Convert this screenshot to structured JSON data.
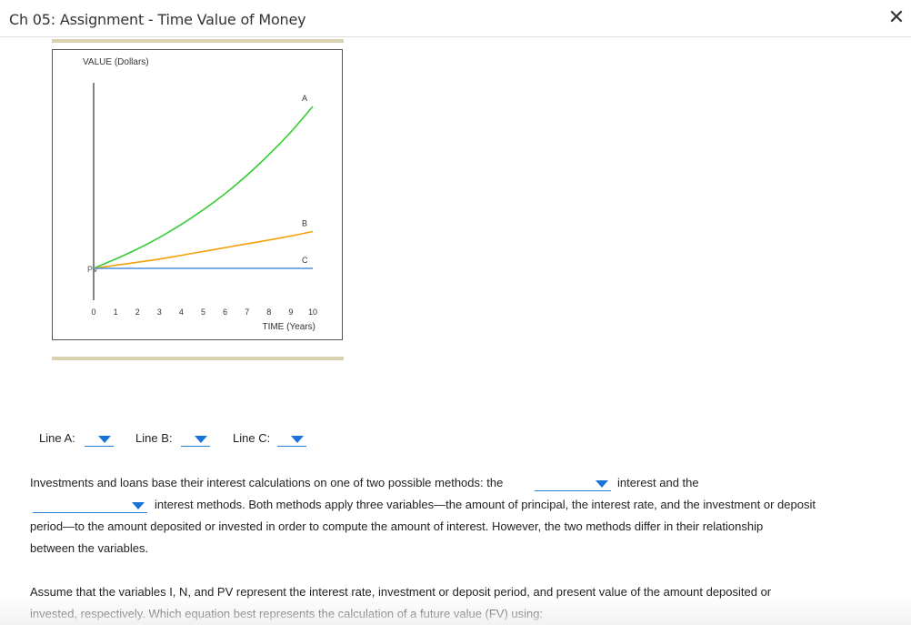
{
  "header": {
    "title": "Ch 05: Assignment - Time Value of Money",
    "close_icon": "close-x-icon"
  },
  "chart_data": {
    "type": "line",
    "ylabel": "VALUE (Dollars)",
    "xlabel": "TIME (Years)",
    "x": [
      0,
      1,
      2,
      3,
      4,
      5,
      6,
      7,
      8,
      9,
      10
    ],
    "tick_labels": [
      "0",
      "1",
      "2",
      "3",
      "4",
      "5",
      "6",
      "7",
      "8",
      "9",
      "10"
    ],
    "pv_label": "PV",
    "series": [
      {
        "name": "A",
        "color": "#33cc33",
        "values": [
          1.0,
          1.12,
          1.25,
          1.4,
          1.57,
          1.76,
          1.97,
          2.21,
          2.48,
          2.77,
          3.11
        ]
      },
      {
        "name": "B",
        "color": "#f5a00a",
        "values": [
          1.0,
          1.04,
          1.08,
          1.12,
          1.17,
          1.22,
          1.27,
          1.32,
          1.37,
          1.42,
          1.48
        ]
      },
      {
        "name": "C",
        "color": "#4a90e2",
        "values": [
          1.0,
          1.0,
          1.0,
          1.0,
          1.0,
          1.0,
          1.0,
          1.0,
          1.0,
          1.0,
          1.0
        ]
      }
    ],
    "ylim": [
      0,
      3.3
    ],
    "grid": false
  },
  "line_selects": {
    "a_label": "Line A:",
    "b_label": "Line B:",
    "c_label": "Line C:"
  },
  "paragraph1": {
    "line1_prefix": "Investments and loans base their interest calculations on one of two possible methods: the",
    "line1_suffix": "interest and the",
    "line2_suffix": "interest methods. Both methods apply three variables—the amount of principal, the interest rate, and the investment or deposit",
    "line3": "period—to the amount deposited or invested in order to compute the amount of interest. However, the two methods differ in their relationship",
    "line4": "between the variables."
  },
  "paragraph2": {
    "line1": "Assume that the variables I, N, and PV represent the interest rate, investment or deposit period, and present value of the amount deposited or",
    "line2": "invested, respectively. Which equation best represents the calculation of a future value (FV) using:"
  },
  "colors": {
    "accent_bar": "#d9d2b1",
    "dropdown": "#1a73d9"
  }
}
